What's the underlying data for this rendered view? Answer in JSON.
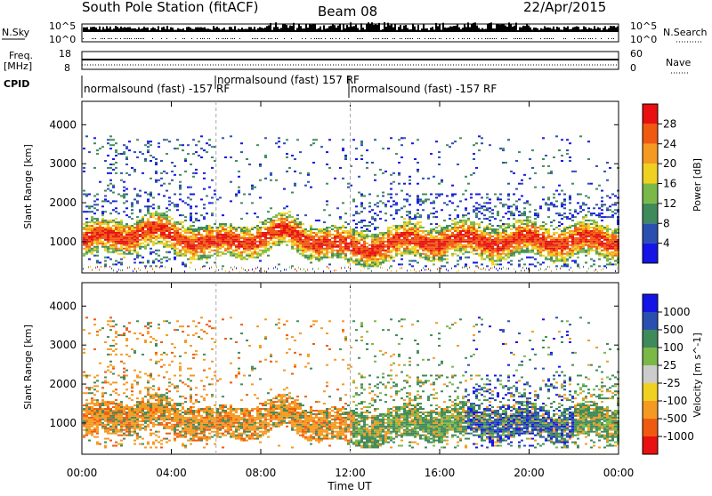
{
  "header": {
    "station": "South Pole Station (fitACF)",
    "beam": "Beam 08",
    "date": "22/Apr/2015"
  },
  "left_labels": {
    "nsky": "N.Sky",
    "freq_line1": "Freq.",
    "freq_line2": "[MHz]",
    "cpid": "CPID"
  },
  "right_labels": {
    "nsearch": "N.Search",
    "nave": "Nave"
  },
  "noise_axis": {
    "left_top": "10^5",
    "left_bottom": "10^0",
    "right_top": "10^5",
    "right_bottom": "10^0"
  },
  "freq_axis": {
    "left_top": "18",
    "left_bottom": "8",
    "right_top": "60",
    "right_bottom": "0"
  },
  "cpid_segments": [
    {
      "label": "normalsound (fast) -157 RF",
      "start_hour": 0
    },
    {
      "label": "normalsound (fast) 157 RF",
      "start_hour": 6
    },
    {
      "label": "normalsound (fast) -157 RF",
      "start_hour": 12
    }
  ],
  "colors": {
    "power": [
      "#1414e6",
      "#2a4fb0",
      "#3f8a5a",
      "#7ab848",
      "#f0d020",
      "#f59a20",
      "#f05a10",
      "#e81010"
    ],
    "velocity": [
      "#e81010",
      "#f05a10",
      "#f59a20",
      "#f0d020",
      "#cccccc",
      "#7ab848",
      "#3f8a5a",
      "#2a4fb0",
      "#1414e6"
    ]
  },
  "chart_data": [
    {
      "type": "heatmap",
      "title": "",
      "xlabel": "",
      "ylabel": "Slant Range [km]",
      "x_range_hours": [
        0,
        24
      ],
      "y_range_km": [
        200,
        4600
      ],
      "x_tick_labels": [
        "00:00",
        "04:00",
        "08:00",
        "12:00",
        "16:00",
        "20:00",
        "00:00"
      ],
      "y_tick_labels": [
        "1000",
        "2000",
        "3000",
        "4000"
      ],
      "y_ticks": [
        1000,
        2000,
        3000,
        4000
      ],
      "colorbar": {
        "label": "Power [dB]",
        "range": [
          0,
          32
        ],
        "tick_labels": [
          "4",
          "8",
          "12",
          "16",
          "20",
          "24",
          "28"
        ],
        "ticks": [
          4,
          8,
          12,
          16,
          20,
          24,
          28
        ]
      },
      "dominant_band_km": [
        {
          "hour": 0,
          "center": 1000
        },
        {
          "hour": 3,
          "center": 1250
        },
        {
          "hour": 6,
          "center": 900
        },
        {
          "hour": 9,
          "center": 1200
        },
        {
          "hour": 12,
          "center": 800
        },
        {
          "hour": 15,
          "center": 1000
        },
        {
          "hour": 18,
          "center": 1000
        },
        {
          "hour": 21,
          "center": 1000
        },
        {
          "hour": 24,
          "center": 1000
        }
      ]
    },
    {
      "type": "heatmap",
      "title": "",
      "xlabel": "Time UT",
      "ylabel": "Slant Range [km]",
      "x_range_hours": [
        0,
        24
      ],
      "y_range_km": [
        200,
        4600
      ],
      "x_tick_labels": [
        "00:00",
        "04:00",
        "08:00",
        "12:00",
        "16:00",
        "20:00",
        "00:00"
      ],
      "y_tick_labels": [
        "1000",
        "2000",
        "3000",
        "4000"
      ],
      "y_ticks": [
        1000,
        2000,
        3000,
        4000
      ],
      "colorbar": {
        "label": "Velocity [m s^-1]",
        "tick_labels": [
          "1000",
          "500",
          "100",
          "25",
          "-25",
          "-100",
          "-500",
          "-1000"
        ],
        "ticks": [
          1000,
          500,
          100,
          25,
          -25,
          -100,
          -500,
          -1000
        ]
      }
    }
  ]
}
